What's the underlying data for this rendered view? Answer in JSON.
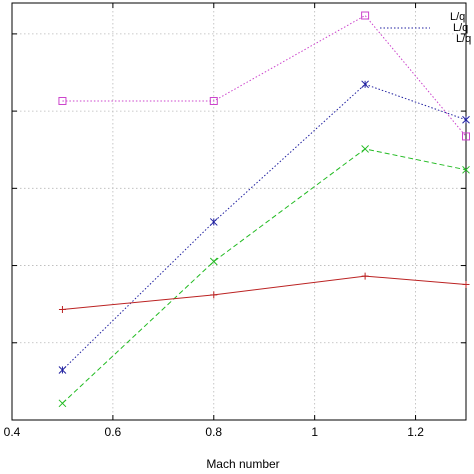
{
  "chart_data": {
    "type": "line",
    "title": "",
    "xlabel": "Mach number",
    "ylabel": "",
    "xlim": [
      0.4,
      1.3
    ],
    "ylim": [
      0,
      1
    ],
    "x_ticks": [
      0.4,
      0.6,
      0.8,
      1.0,
      1.2
    ],
    "x_tick_labels": [
      "0.4",
      "0.6",
      "0.8",
      "1",
      "1.2"
    ],
    "grid": true,
    "legend_position": "top-right",
    "series": [
      {
        "name": "L/q",
        "color": "#cc44cc",
        "line_style": "dotted",
        "marker": "square",
        "x": [
          0.5,
          0.8,
          1.1,
          1.3
        ],
        "y": [
          0.765,
          0.765,
          0.97,
          0.68
        ]
      },
      {
        "name": "L/q",
        "color": "#2020a0",
        "line_style": "dotted",
        "marker": "asterisk",
        "x": [
          0.5,
          0.8,
          1.1,
          1.3
        ],
        "y": [
          0.12,
          0.475,
          0.805,
          0.72
        ]
      },
      {
        "name": "L/q",
        "color": "#22bb22",
        "line_style": "dashed",
        "marker": "x",
        "x": [
          0.5,
          0.8,
          1.1,
          1.3
        ],
        "y": [
          0.04,
          0.38,
          0.65,
          0.6
        ]
      },
      {
        "name": "",
        "color": "#bb2222",
        "line_style": "solid",
        "marker": "plus",
        "x": [
          0.5,
          0.8,
          1.1,
          1.3
        ],
        "y": [
          0.265,
          0.3,
          0.345,
          0.325
        ]
      }
    ]
  }
}
